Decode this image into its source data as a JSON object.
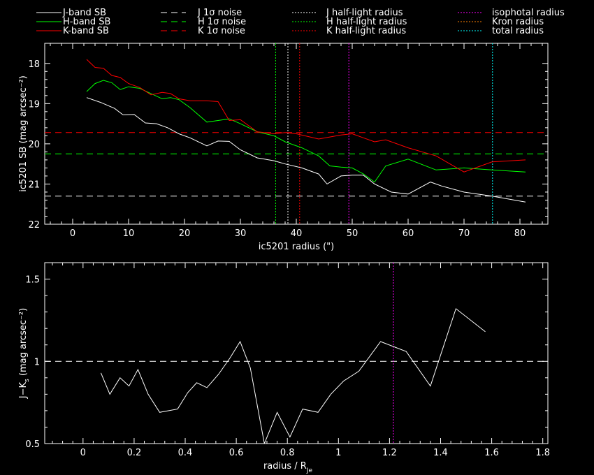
{
  "legend": [
    {
      "label": "J-band SB",
      "color": "#ffffff",
      "dash": "solid"
    },
    {
      "label": "H-band SB",
      "color": "#00ff00",
      "dash": "solid"
    },
    {
      "label": "K-band SB",
      "color": "#ff0000",
      "dash": "solid"
    },
    {
      "label": "J 1σ noise",
      "color": "#ffffff",
      "dash": "dashed"
    },
    {
      "label": "H 1σ noise",
      "color": "#00ff00",
      "dash": "dashed"
    },
    {
      "label": "K 1σ noise",
      "color": "#ff0000",
      "dash": "dashed"
    },
    {
      "label": "J half-light radius",
      "color": "#ffffff",
      "dash": "dotted"
    },
    {
      "label": "H half-light radius",
      "color": "#00ff00",
      "dash": "dotted"
    },
    {
      "label": "K half-light radius",
      "color": "#ff0000",
      "dash": "dotted"
    },
    {
      "label": "isophotal radius",
      "color": "#ff00ff",
      "dash": "dotted"
    },
    {
      "label": "Kron radius",
      "color": "#ff8000",
      "dash": "dotted"
    },
    {
      "label": "total radius",
      "color": "#00ffff",
      "dash": "dotted"
    }
  ],
  "chart_data": [
    {
      "type": "line",
      "xlabel": "ic5201 radius (\")",
      "ylabel": "ic5201 SB (mag arcsec⁻²)",
      "xlim": [
        -5,
        85
      ],
      "ylim": [
        22,
        17.5
      ],
      "xticks": [
        0,
        10,
        20,
        30,
        40,
        50,
        60,
        70,
        80
      ],
      "yticks": [
        18,
        19,
        20,
        21,
        22
      ],
      "series": [
        {
          "name": "J-band SB",
          "color": "#ffffff",
          "x": [
            2.5,
            5,
            7.5,
            9,
            11,
            13,
            15,
            17,
            19,
            21,
            24,
            26,
            28,
            30,
            33,
            36,
            38,
            41,
            44,
            45.5,
            48,
            50,
            52,
            54,
            57,
            60,
            64,
            66,
            70,
            75,
            81
          ],
          "y": [
            18.85,
            18.97,
            19.12,
            19.28,
            19.27,
            19.48,
            19.5,
            19.6,
            19.75,
            19.85,
            20.05,
            19.93,
            19.94,
            20.15,
            20.35,
            20.42,
            20.5,
            20.6,
            20.75,
            21.0,
            20.8,
            20.78,
            20.78,
            21.0,
            21.2,
            21.25,
            20.95,
            21.05,
            21.2,
            21.3,
            21.45
          ]
        },
        {
          "name": "H-band SB",
          "color": "#00ff00",
          "x": [
            2.5,
            4,
            5.5,
            7,
            8.5,
            10,
            12,
            14,
            16,
            17.5,
            19,
            21,
            24,
            26,
            28,
            30,
            33,
            36,
            38,
            41,
            44,
            46,
            48,
            50,
            52,
            54,
            56,
            60,
            65,
            70,
            75,
            81
          ],
          "y": [
            18.7,
            18.5,
            18.42,
            18.48,
            18.65,
            18.58,
            18.62,
            18.75,
            18.88,
            18.85,
            18.9,
            19.1,
            19.46,
            19.42,
            19.38,
            19.5,
            19.7,
            19.8,
            19.95,
            20.1,
            20.3,
            20.55,
            20.58,
            20.6,
            20.75,
            20.95,
            20.55,
            20.38,
            20.65,
            20.6,
            20.65,
            20.7
          ]
        },
        {
          "name": "K-band SB",
          "color": "#ff0000",
          "x": [
            2.5,
            4,
            5.5,
            7,
            8.5,
            10,
            12,
            14,
            16,
            17.5,
            19,
            21,
            24,
            26,
            28,
            30,
            33,
            36,
            38,
            40,
            44,
            46,
            48,
            50,
            52,
            54,
            56,
            60,
            65,
            70,
            75,
            81
          ],
          "y": [
            17.9,
            18.1,
            18.12,
            18.3,
            18.35,
            18.5,
            18.6,
            18.78,
            18.72,
            18.75,
            18.88,
            18.93,
            18.93,
            18.95,
            19.42,
            19.4,
            19.7,
            19.75,
            19.72,
            19.75,
            19.88,
            19.83,
            19.78,
            19.75,
            19.85,
            19.95,
            19.9,
            20.1,
            20.3,
            20.7,
            20.45,
            20.4
          ]
        }
      ],
      "hlines": [
        {
          "name": "J 1σ noise",
          "y": 21.3,
          "color": "#ffffff"
        },
        {
          "name": "H 1σ noise",
          "y": 20.25,
          "color": "#00ff00"
        },
        {
          "name": "K 1σ noise",
          "y": 19.72,
          "color": "#ff0000"
        }
      ],
      "vlines": [
        {
          "name": "J half-light radius",
          "x": 38.5,
          "color": "#ffffff"
        },
        {
          "name": "H half-light radius",
          "x": 36.3,
          "color": "#00ff00"
        },
        {
          "name": "K half-light radius",
          "x": 40.6,
          "color": "#ff0000"
        },
        {
          "name": "isophotal radius",
          "x": 49.4,
          "color": "#ff00ff"
        },
        {
          "name": "total radius",
          "x": 75.1,
          "color": "#00ffff"
        }
      ]
    },
    {
      "type": "line",
      "xlabel": "radius / R",
      "xlabel_sub": "Je",
      "ylabel": "J−K",
      "ylabel_sub": "s",
      "ylabel_tail": " (mag arcsec⁻²)",
      "xlim": [
        -0.15,
        1.82
      ],
      "ylim": [
        0.5,
        1.6
      ],
      "xticks": [
        0,
        0.2,
        0.4,
        0.6,
        0.8,
        1,
        1.2,
        1.4,
        1.6,
        1.8
      ],
      "yticks": [
        0.5,
        1,
        1.5
      ],
      "series": [
        {
          "name": "J-K",
          "color": "#ffffff",
          "x": [
            0.07,
            0.105,
            0.145,
            0.18,
            0.215,
            0.255,
            0.3,
            0.37,
            0.41,
            0.445,
            0.485,
            0.53,
            0.575,
            0.615,
            0.655,
            0.71,
            0.76,
            0.81,
            0.86,
            0.92,
            0.97,
            1.02,
            1.08,
            1.165,
            1.265,
            1.36,
            1.46,
            1.575
          ],
          "y": [
            0.93,
            0.8,
            0.9,
            0.85,
            0.95,
            0.8,
            0.69,
            0.71,
            0.81,
            0.87,
            0.84,
            0.92,
            1.02,
            1.12,
            0.96,
            0.5,
            0.69,
            0.54,
            0.71,
            0.69,
            0.8,
            0.88,
            0.94,
            1.12,
            1.06,
            0.85,
            1.32,
            1.18
          ]
        }
      ],
      "hlines": [
        {
          "name": "J-K = 1",
          "y": 1.0,
          "color": "#ffffff"
        }
      ],
      "vlines": [
        {
          "name": "isophotal radius",
          "x": 1.215,
          "color": "#ff00ff"
        }
      ]
    }
  ]
}
